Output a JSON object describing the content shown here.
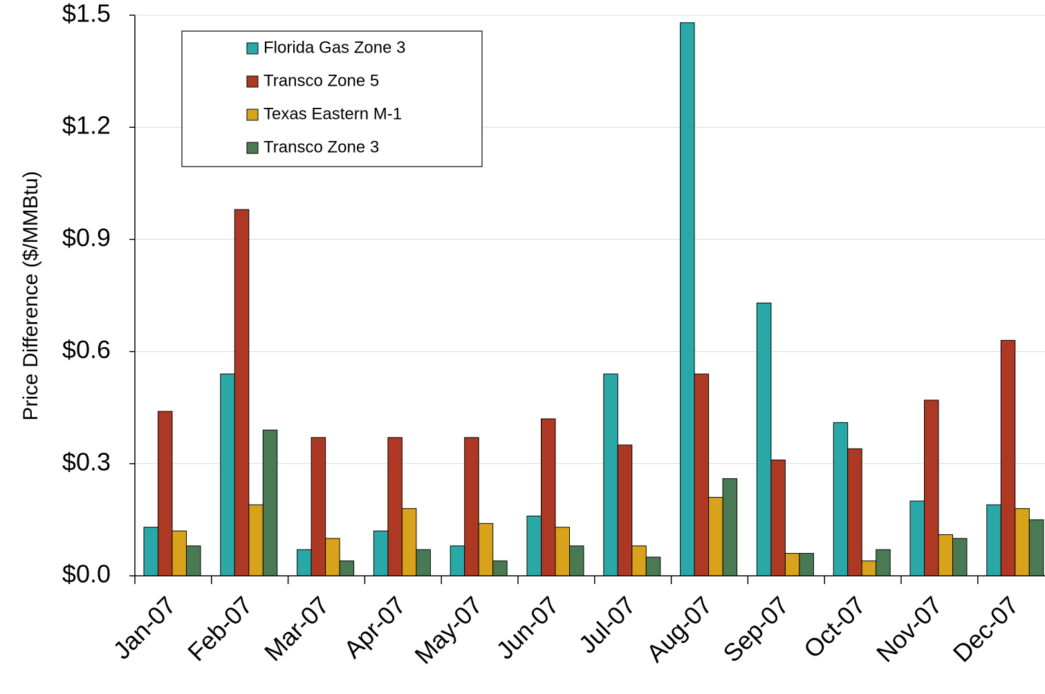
{
  "chart_data": {
    "type": "bar",
    "title": "",
    "xlabel": "",
    "ylabel": "Price Difference  ($/MMBtu)",
    "ylim": [
      0,
      1.5
    ],
    "yticks": [
      "$0.0",
      "$0.3",
      "$0.6",
      "$0.9",
      "$1.2",
      "$1.5"
    ],
    "grid": true,
    "legend_position": "top-left",
    "categories": [
      "Jan-07",
      "Feb-07",
      "Mar-07",
      "Apr-07",
      "May-07",
      "Jun-07",
      "Jul-07",
      "Aug-07",
      "Sep-07",
      "Oct-07",
      "Nov-07",
      "Dec-07"
    ],
    "series": [
      {
        "name": "Florida Gas Zone 3",
        "color": "#2aa8a8",
        "values": [
          0.13,
          0.54,
          0.07,
          0.12,
          0.08,
          0.16,
          0.54,
          1.48,
          0.73,
          0.41,
          0.2,
          0.19
        ]
      },
      {
        "name": "Transco Zone 5",
        "color": "#ad3823",
        "values": [
          0.44,
          0.98,
          0.37,
          0.37,
          0.37,
          0.42,
          0.35,
          0.54,
          0.31,
          0.34,
          0.47,
          0.63
        ]
      },
      {
        "name": "Texas Eastern M-1",
        "color": "#d9a21b",
        "values": [
          0.12,
          0.19,
          0.1,
          0.18,
          0.14,
          0.13,
          0.08,
          0.21,
          0.06,
          0.04,
          0.11,
          0.18
        ]
      },
      {
        "name": "Transco Zone 3",
        "color": "#4a7a53",
        "values": [
          0.08,
          0.39,
          0.04,
          0.07,
          0.04,
          0.08,
          0.05,
          0.26,
          0.06,
          0.07,
          0.1,
          0.15
        ]
      }
    ]
  }
}
